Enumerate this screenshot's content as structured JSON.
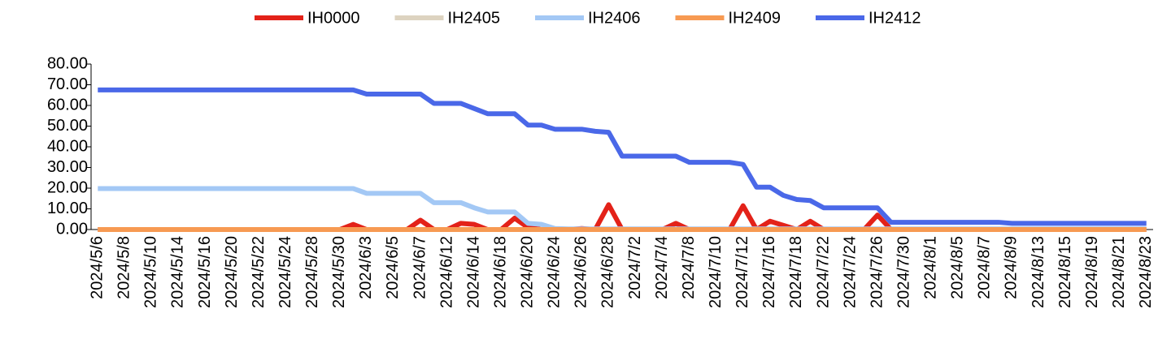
{
  "chart_data": {
    "type": "line",
    "categories": [
      "2024/5/6",
      null,
      "2024/5/8",
      null,
      "2024/5/10",
      null,
      "2024/5/14",
      null,
      "2024/5/16",
      null,
      "2024/5/20",
      null,
      "2024/5/22",
      null,
      "2024/5/24",
      null,
      "2024/5/28",
      null,
      "2024/5/30",
      null,
      "2024/6/3",
      null,
      "2024/6/5",
      null,
      "2024/6/7",
      null,
      "2024/6/12",
      null,
      "2024/6/14",
      null,
      "2024/6/18",
      null,
      "2024/6/20",
      null,
      "2024/6/24",
      null,
      "2024/6/26",
      null,
      "2024/6/28",
      null,
      "2024/7/2",
      null,
      "2024/7/4",
      null,
      "2024/7/8",
      null,
      "2024/7/10",
      null,
      "2024/7/12",
      null,
      "2024/7/16",
      null,
      "2024/7/18",
      null,
      "2024/7/22",
      null,
      "2024/7/24",
      null,
      "2024/7/26",
      null,
      "2024/7/30",
      null,
      "2024/8/1",
      null,
      "2024/8/5",
      null,
      "2024/8/7",
      null,
      "2024/8/9",
      null,
      "2024/8/13",
      null,
      "2024/8/15",
      null,
      "2024/8/19",
      null,
      "2024/8/21",
      null,
      "2024/8/23"
    ],
    "series": [
      {
        "name": "IH0000",
        "color": "#e32219",
        "values": [
          0,
          0,
          0,
          0,
          0,
          0,
          0,
          0,
          0,
          0,
          0,
          0,
          0,
          0,
          0,
          0,
          0,
          0,
          0,
          2.5,
          0,
          0,
          0,
          0,
          4.5,
          0,
          0,
          3,
          2.5,
          0,
          0,
          5.5,
          1,
          0,
          0,
          0,
          0.5,
          0,
          12,
          0,
          0,
          0,
          0,
          3,
          0,
          0,
          0,
          0,
          11.5,
          0,
          4,
          2,
          0,
          4,
          0,
          0,
          0,
          0,
          7,
          0,
          0,
          0,
          0,
          0,
          0,
          0,
          0,
          0,
          0,
          0,
          0,
          0,
          0,
          0,
          0,
          0,
          0,
          0,
          0
        ]
      },
      {
        "name": "IH2405",
        "color": "#ddd3c0",
        "values": [
          0,
          0,
          0,
          0,
          0,
          0,
          0,
          0,
          0,
          0,
          0,
          0,
          0,
          0,
          0,
          0,
          0,
          0,
          0,
          0,
          0,
          0,
          0,
          0,
          0,
          0,
          0,
          0,
          0,
          0,
          0,
          0,
          0,
          0,
          null,
          null,
          null,
          null,
          null,
          null,
          null,
          null,
          null,
          null,
          null,
          null,
          null,
          null,
          null,
          null,
          null,
          null,
          null,
          null,
          null,
          null,
          null,
          null,
          null,
          null,
          null,
          null,
          null,
          null,
          null,
          null,
          null,
          null,
          null,
          null,
          null,
          null,
          null,
          null,
          null,
          null,
          null,
          null,
          null
        ]
      },
      {
        "name": "IH2406",
        "color": "#a3c8f5",
        "values": [
          19.8,
          19.8,
          19.8,
          19.8,
          19.8,
          19.8,
          19.8,
          19.8,
          19.8,
          19.8,
          19.8,
          19.8,
          19.8,
          19.8,
          19.8,
          19.8,
          19.8,
          19.8,
          19.8,
          19.8,
          17.5,
          17.5,
          17.5,
          17.5,
          17.5,
          13,
          13,
          13,
          10.5,
          8.5,
          8.5,
          8.5,
          3,
          2.5,
          0.5,
          0.3,
          0.3,
          0.3,
          0.3,
          0.3,
          0.3,
          0.3,
          0.3,
          0.3,
          0.3,
          0.3,
          0.3,
          0.3,
          0.3,
          0.3,
          0.3,
          0.3,
          0.3,
          0.3,
          0.3,
          0.3,
          0.3,
          0.3,
          0.3,
          0.3,
          0.3,
          0.3,
          0.3,
          0.3,
          0.3,
          0.3,
          0.3,
          0.3,
          0.3,
          0.3,
          0.3,
          0.3,
          0.3,
          0.3,
          0.3,
          0.3,
          0.3,
          0.3,
          0.3
        ]
      },
      {
        "name": "IH2409",
        "color": "#f79a52",
        "values": [
          0,
          0,
          0,
          0,
          0,
          0,
          0,
          0,
          0,
          0,
          0,
          0,
          0,
          0,
          0,
          0,
          0,
          0,
          0,
          0,
          0,
          0,
          0,
          0,
          0,
          0,
          0,
          0,
          0,
          0,
          0,
          0,
          0,
          0,
          0,
          0,
          0,
          0,
          0,
          0,
          0,
          0,
          0,
          0,
          0,
          0,
          0,
          0,
          0,
          0,
          0,
          0,
          0,
          0,
          0,
          0,
          0,
          0,
          0,
          0,
          0,
          0,
          0,
          0,
          0,
          0,
          0,
          0,
          0,
          0,
          0,
          0,
          0,
          0,
          0,
          0,
          0,
          0,
          0
        ]
      },
      {
        "name": "IH2412",
        "color": "#4a68e8",
        "values": [
          67.5,
          67.5,
          67.5,
          67.5,
          67.5,
          67.5,
          67.5,
          67.5,
          67.5,
          67.5,
          67.5,
          67.5,
          67.5,
          67.5,
          67.5,
          67.5,
          67.5,
          67.5,
          67.5,
          67.5,
          65.5,
          65.5,
          65.5,
          65.5,
          65.5,
          61,
          61,
          61,
          58.5,
          56,
          56,
          56,
          50.5,
          50.5,
          48.5,
          48.5,
          48.5,
          47.5,
          47,
          35.5,
          35.5,
          35.5,
          35.5,
          35.5,
          32.5,
          32.5,
          32.5,
          32.5,
          31.5,
          20.5,
          20.5,
          16.5,
          14.5,
          14,
          10.5,
          10.5,
          10.5,
          10.5,
          10.5,
          3.5,
          3.5,
          3.5,
          3.5,
          3.5,
          3.5,
          3.5,
          3.5,
          3.5,
          3,
          3,
          3,
          3,
          3,
          3,
          3,
          3,
          3,
          3,
          3
        ]
      }
    ],
    "ylim": [
      0,
      80
    ],
    "yticks": [
      {
        "value": 0,
        "label": "0.00"
      },
      {
        "value": 10,
        "label": "10.00"
      },
      {
        "value": 20,
        "label": "20.00"
      },
      {
        "value": 30,
        "label": "30.00"
      },
      {
        "value": 40,
        "label": "40.00"
      },
      {
        "value": 50,
        "label": "50.00"
      },
      {
        "value": 60,
        "label": "60.00"
      },
      {
        "value": 70,
        "label": "70.00"
      },
      {
        "value": 80,
        "label": "80.00"
      }
    ],
    "legend": "top"
  }
}
